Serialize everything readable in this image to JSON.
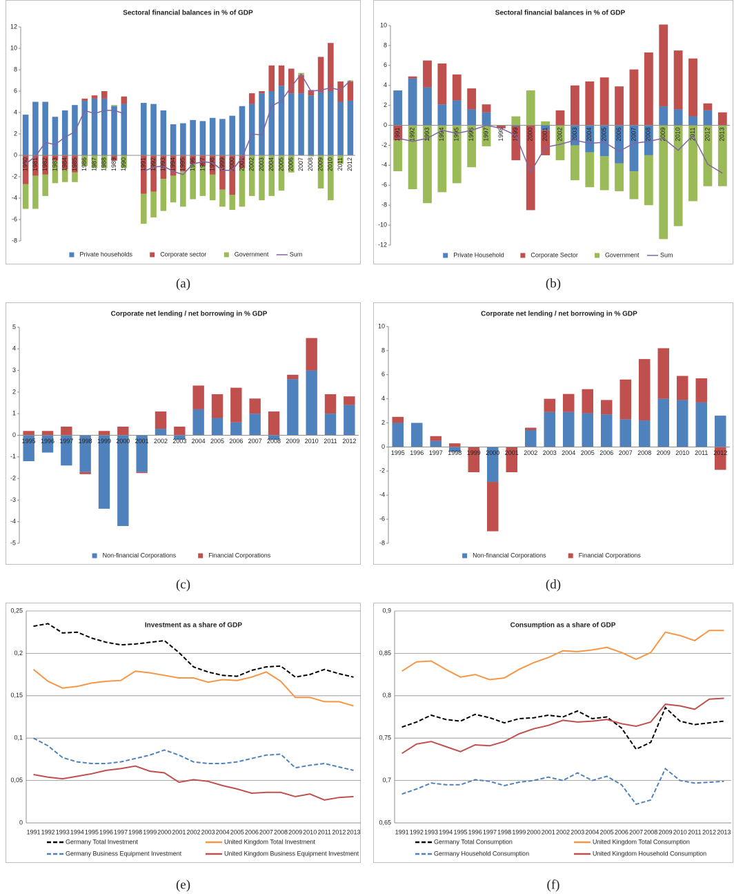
{
  "chart_data": [
    {
      "type": "bar",
      "stacked": true,
      "title": "Sectoral financial balances in % of GDP",
      "caption": "(a)",
      "legend": "bottom",
      "grid": false,
      "categories": [
        "1980",
        "1981",
        "1982",
        "1983",
        "1984",
        "1985",
        "1986",
        "1987",
        "1988",
        "1989",
        "1990",
        null,
        "1991",
        "1992",
        "1993",
        "1994",
        "1995",
        "1996",
        "1997",
        "1998",
        "1999",
        "2000",
        "2001",
        "2002",
        "2003",
        "2004",
        "2005",
        "2006",
        "2007",
        "2008",
        "2009",
        "2010",
        "2011",
        "2012"
      ],
      "ylim": [
        -8,
        12
      ],
      "yticks": [
        -8,
        -6,
        -4,
        -2,
        0,
        2,
        4,
        6,
        8,
        10,
        12
      ],
      "series": [
        {
          "name": "Private households",
          "color": "#4f81bd",
          "values": [
            3.8,
            5.0,
            5.0,
            3.6,
            4.2,
            4.7,
            5.1,
            5.3,
            5.3,
            4.6,
            4.8,
            null,
            4.9,
            4.8,
            4.2,
            2.9,
            3.0,
            3.3,
            3.2,
            3.5,
            3.4,
            3.7,
            4.6,
            4.8,
            5.8,
            6.0,
            6.5,
            5.8,
            5.8,
            5.6,
            5.9,
            6.0,
            5.0,
            5.1
          ]
        },
        {
          "name": "Corporate sector",
          "color": "#c0504d",
          "values": [
            -2.7,
            -1.9,
            -1.8,
            -0.5,
            -1.3,
            -1.6,
            0.2,
            0.3,
            0.7,
            -0.5,
            0.7,
            null,
            -3.6,
            -3.4,
            -2.2,
            -1.9,
            -1.5,
            -0.8,
            -1.0,
            -1.8,
            -3.2,
            -3.7,
            -1.2,
            1.0,
            0.2,
            2.4,
            1.9,
            2.3,
            1.7,
            0.5,
            3.3,
            4.5,
            1.9,
            1.8
          ]
        },
        {
          "name": "Government",
          "color": "#9bbb59",
          "values": [
            -2.3,
            -3.1,
            -2.0,
            -2.1,
            -1.2,
            -0.9,
            -1.0,
            -1.2,
            -1.2,
            0.1,
            -1.2,
            null,
            -2.8,
            -2.4,
            -3.0,
            -2.5,
            -3.3,
            -3.3,
            -2.8,
            -2.4,
            -1.6,
            -1.4,
            -3.6,
            -3.8,
            -4.2,
            -3.8,
            -3.3,
            -1.6,
            0.2,
            -0.1,
            -3.1,
            -4.2,
            -0.8,
            0.1
          ]
        },
        {
          "name": "Sum",
          "type": "line",
          "color": "#8064a2",
          "values": [
            -0.8,
            -0.1,
            1.2,
            1.0,
            1.7,
            2.2,
            4.2,
            3.9,
            4.2,
            4.2,
            3.9,
            null,
            -1.5,
            -1.1,
            -1.0,
            -1.5,
            -1.8,
            -0.8,
            -0.6,
            -0.7,
            -1.4,
            -1.4,
            -0.2,
            2.0,
            1.9,
            4.6,
            5.1,
            6.4,
            7.6,
            6.0,
            6.1,
            6.3,
            6.1,
            7.0
          ]
        }
      ]
    },
    {
      "type": "bar",
      "stacked": true,
      "title": "Sectoral financial balances in % of GDP",
      "caption": "(b)",
      "legend": "bottom",
      "grid": false,
      "categories": [
        "1991",
        "1992",
        "1993",
        "1994",
        "1995",
        "1996",
        "1997",
        "1998",
        "1999",
        "2000",
        "2001",
        "2002",
        "2003",
        "2004",
        "2005",
        "2006",
        "2007",
        "2008",
        "2009",
        "2010",
        "2011",
        "2012",
        "2013"
      ],
      "ylim": [
        -12,
        10
      ],
      "yticks": [
        -12,
        -10,
        -8,
        -6,
        -4,
        -2,
        0,
        2,
        4,
        6,
        8,
        10
      ],
      "series": [
        {
          "name": "Private Household",
          "color": "#4f81bd",
          "values": [
            3.5,
            4.7,
            3.8,
            2.1,
            2.5,
            1.6,
            1.3,
            0,
            -0.1,
            0,
            -0.5,
            0,
            -2.0,
            -2.7,
            -3.1,
            -3.8,
            -4.6,
            -3.0,
            1.9,
            1.6,
            0.9,
            1.5,
            0
          ]
        },
        {
          "name": "Corporate Sector",
          "color": "#c0504d",
          "values": [
            -1.5,
            0.2,
            2.7,
            4.1,
            2.6,
            2.1,
            0.8,
            -0.3,
            -3.4,
            -8.5,
            -2.5,
            1.5,
            4.0,
            4.4,
            4.8,
            3.9,
            5.6,
            7.3,
            8.2,
            5.9,
            5.8,
            0.7,
            1.3
          ]
        },
        {
          "name": "Government",
          "color": "#9bbb59",
          "values": [
            -3.1,
            -6.4,
            -7.8,
            -6.7,
            -5.8,
            -4.2,
            -2.1,
            0,
            0.9,
            3.5,
            0.4,
            -3.5,
            -3.5,
            -3.5,
            -3.4,
            -2.8,
            -2.8,
            -5.0,
            -11.4,
            -10.1,
            -7.6,
            -6.1,
            -6.1
          ]
        },
        {
          "name": "Sum",
          "type": "line",
          "color": "#8064a2",
          "values": [
            -1.3,
            -1.6,
            -1.3,
            -0.5,
            -0.8,
            -0.5,
            0,
            -0.3,
            -1.0,
            -4.7,
            -2.2,
            -1.9,
            -1.5,
            -1.8,
            -1.7,
            -2.6,
            -1.8,
            -1.6,
            -1.3,
            -2.5,
            -1.0,
            -3.9,
            -4.8
          ]
        }
      ]
    },
    {
      "type": "bar",
      "stacked": true,
      "title": "Corporate net lending / net borrowing in % GDP",
      "caption": "(c)",
      "legend": "bottom",
      "grid": false,
      "categories": [
        "1995",
        "1996",
        "1997",
        "1998",
        "1999",
        "2000",
        "2001",
        "2002",
        "2003",
        "2004",
        "2005",
        "2006",
        "2007",
        "2008",
        "2009",
        "2010",
        "2011",
        "2012"
      ],
      "ylim": [
        -5,
        5
      ],
      "yticks": [
        -5,
        -4,
        -3,
        -2,
        -1,
        0,
        1,
        2,
        3,
        4,
        5
      ],
      "series": [
        {
          "name": "Non-financial Corporations",
          "color": "#4f81bd",
          "values": [
            -1.2,
            -0.8,
            -1.4,
            -1.7,
            -3.4,
            -4.2,
            -1.7,
            0.3,
            -0.2,
            1.2,
            0.8,
            0.6,
            1.0,
            -0.2,
            2.6,
            3.0,
            1.0,
            1.4
          ]
        },
        {
          "name": "Financial Corporations",
          "color": "#c0504d",
          "values": [
            0.2,
            0.2,
            0.4,
            -0.1,
            0.2,
            0.4,
            -0.05,
            0.8,
            0.4,
            1.1,
            1.1,
            1.6,
            0.7,
            1.1,
            0.2,
            1.5,
            0.9,
            0.4
          ]
        }
      ]
    },
    {
      "type": "bar",
      "stacked": true,
      "title": "Corporate net lending / net borrowing in % GDP",
      "caption": "(d)",
      "legend": "bottom",
      "grid": false,
      "categories": [
        "1995",
        "1996",
        "1997",
        "1998",
        "1999",
        "2000",
        "2001",
        "2002",
        "2003",
        "2004",
        "2005",
        "2006",
        "2007",
        "2008",
        "2009",
        "2010",
        "2011",
        "2012"
      ],
      "ylim": [
        -8,
        10
      ],
      "yticks": [
        -8,
        -6,
        -4,
        -2,
        0,
        2,
        4,
        6,
        8,
        10
      ],
      "series": [
        {
          "name": "Non-financial Corporations",
          "color": "#4f81bd",
          "values": [
            2.0,
            2.0,
            0.5,
            -0.4,
            0,
            -2.9,
            0,
            1.4,
            2.9,
            2.9,
            2.8,
            2.7,
            2.3,
            2.2,
            4.0,
            3.9,
            3.7,
            2.6
          ]
        },
        {
          "name": "Financial Corporations",
          "color": "#c0504d",
          "values": [
            0.5,
            0,
            0.4,
            0.3,
            -2.1,
            -4.1,
            -2.1,
            0.2,
            1.1,
            1.5,
            2.0,
            1.2,
            3.3,
            5.1,
            4.2,
            2.0,
            2.0,
            -1.9
          ]
        }
      ]
    },
    {
      "type": "line",
      "title": "Investment as a share of GDP",
      "caption": "(e)",
      "legend": "bottom",
      "grid": true,
      "categories": [
        "1991",
        "1992",
        "1993",
        "1994",
        "1995",
        "1996",
        "1997",
        "1998",
        "1999",
        "2000",
        "2001",
        "2002",
        "2003",
        "2004",
        "2005",
        "2006",
        "2007",
        "2008",
        "2009",
        "2010",
        "2011",
        "2012",
        "2013"
      ],
      "ylim": [
        0,
        0.25
      ],
      "yticks": [
        0,
        {
          "value": 0.05,
          "label": "0,05"
        },
        {
          "value": 0.1,
          "label": "0,1"
        },
        {
          "value": 0.15,
          "label": "0,15"
        },
        {
          "value": 0.2,
          "label": "0,2"
        },
        {
          "value": 0.25,
          "label": "0,25"
        }
      ],
      "series": [
        {
          "name": "Germany Total Investment",
          "color": "#000000",
          "dash": true,
          "values": [
            0.232,
            0.235,
            0.224,
            0.225,
            0.218,
            0.213,
            0.21,
            0.211,
            0.213,
            0.215,
            0.201,
            0.184,
            0.178,
            0.174,
            0.173,
            0.18,
            0.184,
            0.185,
            0.172,
            0.175,
            0.181,
            0.176,
            0.172
          ]
        },
        {
          "name": "United Kingdom Total Investment",
          "color": "#f79646",
          "dash": false,
          "values": [
            0.181,
            0.167,
            0.159,
            0.161,
            0.165,
            0.167,
            0.168,
            0.179,
            0.177,
            0.174,
            0.171,
            0.171,
            0.166,
            0.169,
            0.168,
            0.172,
            0.178,
            0.167,
            0.148,
            0.148,
            0.143,
            0.143,
            0.138
          ]
        },
        {
          "name": "Germany Business Equipment Investment",
          "color": "#4f81bd",
          "dash": true,
          "values": [
            0.1,
            0.091,
            0.077,
            0.072,
            0.07,
            0.07,
            0.072,
            0.076,
            0.08,
            0.086,
            0.08,
            0.072,
            0.07,
            0.07,
            0.072,
            0.076,
            0.08,
            0.081,
            0.065,
            0.068,
            0.07,
            0.066,
            0.062
          ]
        },
        {
          "name": "United Kingdom Business Equipment Investment",
          "color": "#c0504d",
          "dash": false,
          "values": [
            0.057,
            0.054,
            0.052,
            0.055,
            0.058,
            0.062,
            0.064,
            0.067,
            0.061,
            0.059,
            0.048,
            0.051,
            0.049,
            0.044,
            0.04,
            0.035,
            0.036,
            0.036,
            0.031,
            0.034,
            0.027,
            0.03,
            0.031
          ]
        }
      ]
    },
    {
      "type": "line",
      "title": "Consumption as a share of GDP",
      "caption": "(f)",
      "legend": "bottom",
      "grid": true,
      "categories": [
        "1991",
        "1992",
        "1993",
        "1994",
        "1995",
        "1996",
        "1997",
        "1998",
        "1999",
        "2000",
        "2001",
        "2002",
        "2003",
        "2004",
        "2005",
        "2006",
        "2007",
        "2008",
        "2009",
        "2010",
        "2011",
        "2012",
        "2013"
      ],
      "ylim": [
        0.65,
        0.9
      ],
      "yticks": [
        {
          "value": 0.65,
          "label": "0,65"
        },
        {
          "value": 0.7,
          "label": "0,7"
        },
        {
          "value": 0.75,
          "label": "0,75"
        },
        {
          "value": 0.8,
          "label": "0,8"
        },
        {
          "value": 0.85,
          "label": "0,85"
        },
        {
          "value": 0.9,
          "label": "0,9"
        }
      ],
      "series": [
        {
          "name": "Germany Total Consumption",
          "color": "#000000",
          "dash": true,
          "values": [
            0.763,
            0.769,
            0.777,
            0.772,
            0.77,
            0.778,
            0.774,
            0.768,
            0.773,
            0.774,
            0.777,
            0.775,
            0.782,
            0.773,
            0.775,
            0.762,
            0.737,
            0.745,
            0.786,
            0.77,
            0.766,
            0.768,
            0.77
          ]
        },
        {
          "name": "United Kingdom Total Consumption",
          "color": "#f79646",
          "dash": false,
          "values": [
            0.829,
            0.84,
            0.841,
            0.831,
            0.822,
            0.825,
            0.819,
            0.821,
            0.831,
            0.839,
            0.845,
            0.853,
            0.852,
            0.854,
            0.857,
            0.851,
            0.843,
            0.851,
            0.875,
            0.871,
            0.865,
            0.877,
            0.877
          ]
        },
        {
          "name": "Germany Household Consumption",
          "color": "#4f81bd",
          "dash": true,
          "values": [
            0.684,
            0.69,
            0.697,
            0.695,
            0.695,
            0.701,
            0.699,
            0.694,
            0.698,
            0.7,
            0.704,
            0.7,
            0.709,
            0.7,
            0.705,
            0.695,
            0.672,
            0.677,
            0.714,
            0.7,
            0.697,
            0.698,
            0.699
          ]
        },
        {
          "name": "United Kingdom Household Consumption",
          "color": "#c0504d",
          "dash": false,
          "values": [
            0.732,
            0.743,
            0.746,
            0.74,
            0.734,
            0.742,
            0.741,
            0.746,
            0.755,
            0.761,
            0.765,
            0.771,
            0.769,
            0.77,
            0.772,
            0.767,
            0.764,
            0.769,
            0.79,
            0.788,
            0.784,
            0.796,
            0.797
          ]
        }
      ]
    }
  ]
}
